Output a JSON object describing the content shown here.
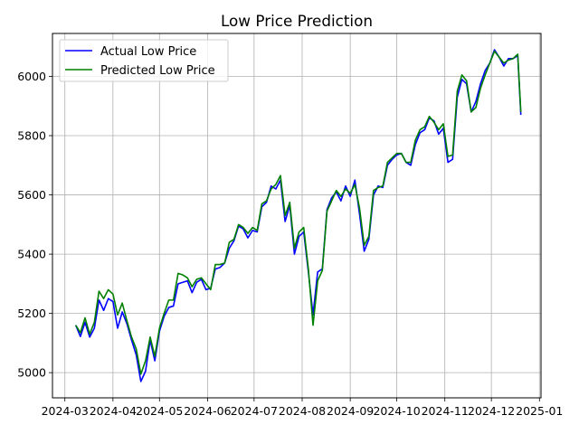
{
  "chart_data": {
    "type": "line",
    "title": "Low Price Prediction",
    "xlabel": "",
    "ylabel": "",
    "grid": true,
    "legend_position": "upper-left",
    "xlim": [
      "2024-02-22",
      "2025-01-02"
    ],
    "ylim": [
      4915,
      6145
    ],
    "x_ticks": [
      "2024-03",
      "2024-04",
      "2024-05",
      "2024-06",
      "2024-07",
      "2024-08",
      "2024-09",
      "2024-10",
      "2024-11",
      "2024-12",
      "2025-01"
    ],
    "y_ticks": [
      5000,
      5200,
      5400,
      5600,
      5800,
      6000
    ],
    "x": [
      "2024-03-08",
      "2024-03-11",
      "2024-03-14",
      "2024-03-17",
      "2024-03-20",
      "2024-03-23",
      "2024-03-26",
      "2024-03-29",
      "2024-04-01",
      "2024-04-04",
      "2024-04-07",
      "2024-04-10",
      "2024-04-13",
      "2024-04-16",
      "2024-04-19",
      "2024-04-22",
      "2024-04-25",
      "2024-04-28",
      "2024-05-01",
      "2024-05-04",
      "2024-05-07",
      "2024-05-10",
      "2024-05-13",
      "2024-05-16",
      "2024-05-19",
      "2024-05-22",
      "2024-05-25",
      "2024-05-28",
      "2024-05-31",
      "2024-06-03",
      "2024-06-06",
      "2024-06-09",
      "2024-06-12",
      "2024-06-15",
      "2024-06-18",
      "2024-06-21",
      "2024-06-24",
      "2024-06-27",
      "2024-06-30",
      "2024-07-03",
      "2024-07-06",
      "2024-07-09",
      "2024-07-12",
      "2024-07-15",
      "2024-07-18",
      "2024-07-21",
      "2024-07-24",
      "2024-07-27",
      "2024-07-30",
      "2024-08-02",
      "2024-08-05",
      "2024-08-08",
      "2024-08-11",
      "2024-08-14",
      "2024-08-17",
      "2024-08-20",
      "2024-08-23",
      "2024-08-26",
      "2024-08-29",
      "2024-09-01",
      "2024-09-04",
      "2024-09-07",
      "2024-09-10",
      "2024-09-13",
      "2024-09-16",
      "2024-09-19",
      "2024-09-22",
      "2024-09-25",
      "2024-09-28",
      "2024-10-01",
      "2024-10-04",
      "2024-10-07",
      "2024-10-10",
      "2024-10-13",
      "2024-10-16",
      "2024-10-19",
      "2024-10-22",
      "2024-10-25",
      "2024-10-28",
      "2024-10-31",
      "2024-11-03",
      "2024-11-06",
      "2024-11-09",
      "2024-11-12",
      "2024-11-15",
      "2024-11-18",
      "2024-11-21",
      "2024-11-24",
      "2024-11-27",
      "2024-11-30",
      "2024-12-03",
      "2024-12-06",
      "2024-12-09",
      "2024-12-12",
      "2024-12-15",
      "2024-12-18",
      "2024-12-20"
    ],
    "series": [
      {
        "name": "Actual Low Price",
        "color": "#0000ff",
        "values": [
          5160,
          5122,
          5170,
          5120,
          5150,
          5245,
          5210,
          5250,
          5240,
          5150,
          5205,
          5165,
          5110,
          5060,
          4970,
          5005,
          5110,
          5040,
          5140,
          5190,
          5220,
          5225,
          5300,
          5305,
          5310,
          5270,
          5305,
          5315,
          5280,
          5285,
          5350,
          5355,
          5370,
          5420,
          5445,
          5495,
          5485,
          5455,
          5480,
          5475,
          5560,
          5575,
          5630,
          5620,
          5650,
          5510,
          5565,
          5400,
          5460,
          5475,
          5340,
          5195,
          5340,
          5350,
          5550,
          5590,
          5610,
          5580,
          5630,
          5595,
          5650,
          5535,
          5410,
          5450,
          5600,
          5630,
          5625,
          5700,
          5720,
          5735,
          5740,
          5710,
          5700,
          5770,
          5810,
          5820,
          5860,
          5850,
          5805,
          5825,
          5710,
          5720,
          5930,
          5990,
          5975,
          5880,
          5915,
          5975,
          6020,
          6045,
          6090,
          6065,
          6035,
          6060,
          6060,
          6070,
          5870
        ]
      },
      {
        "name": "Predicted Low Price",
        "color": "#008000",
        "values": [
          5160,
          5135,
          5185,
          5130,
          5170,
          5275,
          5250,
          5280,
          5265,
          5195,
          5235,
          5175,
          5120,
          5080,
          4995,
          5040,
          5120,
          5055,
          5150,
          5200,
          5245,
          5245,
          5335,
          5330,
          5320,
          5290,
          5315,
          5320,
          5300,
          5280,
          5365,
          5365,
          5370,
          5440,
          5450,
          5500,
          5490,
          5470,
          5490,
          5480,
          5570,
          5580,
          5620,
          5635,
          5665,
          5530,
          5575,
          5420,
          5475,
          5490,
          5350,
          5160,
          5310,
          5345,
          5545,
          5580,
          5615,
          5595,
          5620,
          5605,
          5635,
          5555,
          5430,
          5460,
          5615,
          5625,
          5630,
          5710,
          5725,
          5740,
          5740,
          5710,
          5710,
          5785,
          5820,
          5830,
          5865,
          5845,
          5820,
          5840,
          5730,
          5735,
          5950,
          6005,
          5985,
          5880,
          5895,
          5960,
          6005,
          6045,
          6085,
          6065,
          6045,
          6055,
          6060,
          6075,
          5880
        ]
      }
    ]
  }
}
